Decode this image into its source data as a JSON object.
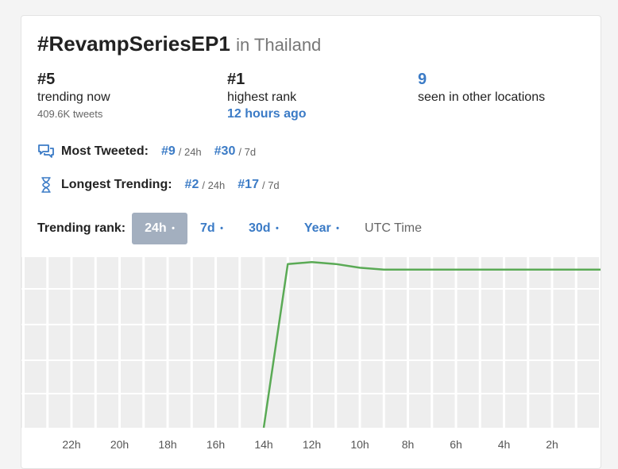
{
  "header": {
    "hashtag": "#RevampSeriesEP1",
    "location": "in Thailand"
  },
  "stats": {
    "current": {
      "value": "#5",
      "label": "trending now",
      "sub": "409.6K tweets"
    },
    "highest": {
      "value": "#1",
      "label": "highest rank",
      "sub": "12 hours ago"
    },
    "other": {
      "value": "9",
      "label": "seen in other locations"
    }
  },
  "most_tweeted": {
    "label": "Most Tweeted:",
    "icon": "chat-bubbles-icon",
    "entries": [
      {
        "rank": "#9",
        "period": "/ 24h"
      },
      {
        "rank": "#30",
        "period": "/ 7d"
      }
    ]
  },
  "longest_trending": {
    "label": "Longest Trending:",
    "icon": "hourglass-icon",
    "entries": [
      {
        "rank": "#2",
        "period": "/ 24h"
      },
      {
        "rank": "#17",
        "period": "/ 7d"
      }
    ]
  },
  "trending_rank": {
    "label": "Trending rank:",
    "ranges": [
      {
        "label": "24h",
        "dot": "•",
        "active": true
      },
      {
        "label": "7d",
        "dot": "•",
        "active": false
      },
      {
        "label": "30d",
        "dot": "•",
        "active": false
      },
      {
        "label": "Year",
        "dot": "•",
        "active": false
      }
    ],
    "utc_label": "UTC Time"
  },
  "colors": {
    "accent": "#3b7bc6",
    "line": "#5aaa55",
    "grid_bg": "#eeeeee",
    "active_range": "#a3afbf"
  },
  "chart_data": {
    "type": "line",
    "x_tick_labels": [
      "22h",
      "20h",
      "18h",
      "16h",
      "14h",
      "12h",
      "10h",
      "8h",
      "6h",
      "4h",
      "2h"
    ],
    "x_unit": "hours ago",
    "xlim": [
      24,
      0
    ],
    "ylim": [
      5,
      50
    ],
    "y_inverted": true,
    "series": [
      {
        "x": [
          14,
          13,
          12,
          11,
          10,
          9,
          8,
          7,
          6,
          5,
          4,
          3,
          2,
          1,
          0
        ],
        "y": [
          50,
          6,
          5.5,
          6,
          7,
          7.5,
          7.5,
          7.5,
          7.5,
          7.5,
          7.5,
          7.5,
          7.5,
          7.5,
          7.5
        ]
      }
    ],
    "grid": true
  }
}
